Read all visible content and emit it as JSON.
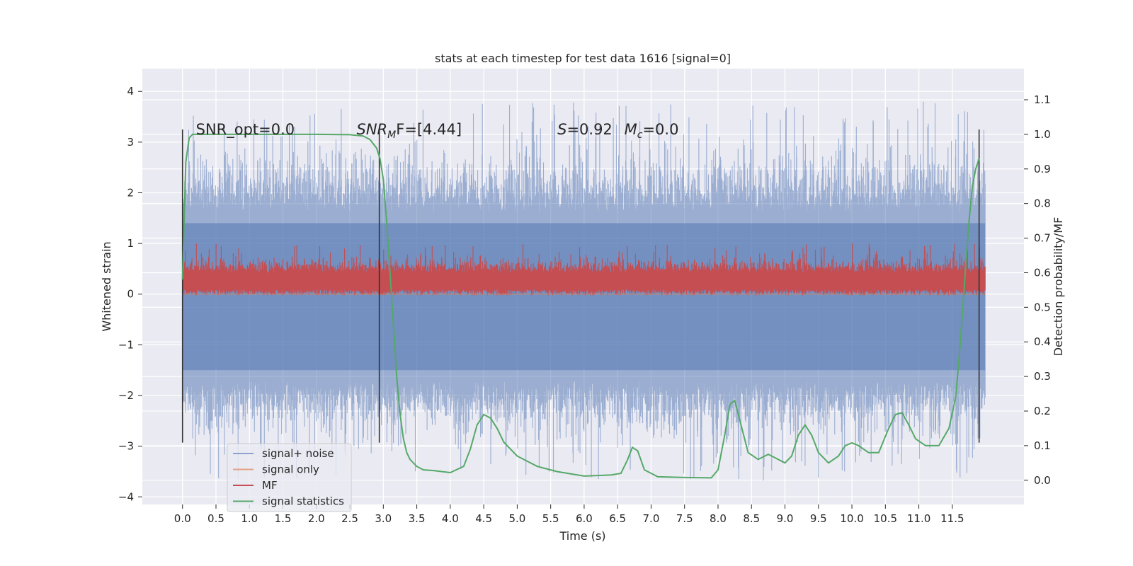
{
  "chart_data": {
    "type": "line",
    "title": "stats at each timestep for test data 1616 [signal=0]",
    "xlabel": "Time (s)",
    "ylabel": "Whitened strain",
    "y2label": "Detection probability/MF",
    "xlim": [
      -0.6,
      12.57
    ],
    "ylim": [
      -4.15,
      4.45
    ],
    "y2lim": [
      -0.07,
      1.19
    ],
    "xticks": [
      0.0,
      0.5,
      1.0,
      1.5,
      2.0,
      2.5,
      3.0,
      3.5,
      4.0,
      4.5,
      5.0,
      5.5,
      6.0,
      6.5,
      7.0,
      7.5,
      8.0,
      8.5,
      9.0,
      9.5,
      10.0,
      10.5,
      11.0,
      11.5
    ],
    "xtick_labels": [
      "0.0",
      "0.5",
      "1.0",
      "1.5",
      "2.0",
      "2.5",
      "3.0",
      "3.5",
      "4.0",
      "4.5",
      "5.0",
      "5.5",
      "6.0",
      "6.5",
      "7.0",
      "7.5",
      "8.0",
      "8.5",
      "9.0",
      "9.5",
      "10.0",
      "10.5",
      "11.0",
      "11.5"
    ],
    "yticks": [
      -4,
      -3,
      -2,
      -1,
      0,
      1,
      2,
      3,
      4
    ],
    "ytick_labels": [
      "−4",
      "−3",
      "−2",
      "−1",
      "0",
      "1",
      "2",
      "3",
      "4"
    ],
    "y2ticks": [
      0.0,
      0.1,
      0.2,
      0.3,
      0.4,
      0.5,
      0.6,
      0.7,
      0.8,
      0.9,
      1.0,
      1.1
    ],
    "y2tick_labels": [
      "0.0",
      "0.1",
      "0.2",
      "0.3",
      "0.4",
      "0.5",
      "0.6",
      "0.7",
      "0.8",
      "0.9",
      "1.0",
      "1.1"
    ],
    "grid": true,
    "legend_position": "lower-left",
    "series": [
      {
        "name": "signal+ noise",
        "axis": "left",
        "color": "#4c72b0",
        "alpha": 0.5,
        "x_range": [
          0.0,
          11.99
        ],
        "envelope": "noise band, mostly within ±2.5, spikes to about ±4"
      },
      {
        "name": "signal only",
        "axis": "left",
        "color": "#dd8452",
        "values": "zero everywhere (signal=0)"
      },
      {
        "name": "MF",
        "axis": "left",
        "color": "#c44e52",
        "x_range": [
          0.0,
          11.99
        ],
        "envelope": "band about 0.0 to 0.7, peaks near 1.0"
      },
      {
        "name": "signal statistics",
        "axis": "right",
        "color": "#55a868",
        "x": [
          0.0,
          0.05,
          0.1,
          0.15,
          0.25,
          0.5,
          1.0,
          1.5,
          2.0,
          2.5,
          2.7,
          2.8,
          2.9,
          2.95,
          3.0,
          3.05,
          3.1,
          3.15,
          3.2,
          3.25,
          3.3,
          3.35,
          3.4,
          3.5,
          3.6,
          3.75,
          4.0,
          4.2,
          4.3,
          4.4,
          4.5,
          4.6,
          4.7,
          4.8,
          5.0,
          5.3,
          5.6,
          6.0,
          6.4,
          6.55,
          6.65,
          6.72,
          6.8,
          6.9,
          7.1,
          7.5,
          7.9,
          8.0,
          8.1,
          8.18,
          8.25,
          8.33,
          8.45,
          8.6,
          8.75,
          8.9,
          9.0,
          9.1,
          9.2,
          9.3,
          9.4,
          9.5,
          9.65,
          9.8,
          9.9,
          10.0,
          10.1,
          10.25,
          10.4,
          10.55,
          10.65,
          10.75,
          10.85,
          10.95,
          11.1,
          11.3,
          11.45,
          11.55,
          11.6,
          11.65,
          11.7,
          11.75,
          11.8,
          11.85,
          11.9
        ],
        "y": [
          0.58,
          0.92,
          0.99,
          1.0,
          1.0,
          1.0,
          1.0,
          1.0,
          1.0,
          0.999,
          0.995,
          0.985,
          0.96,
          0.93,
          0.87,
          0.75,
          0.6,
          0.45,
          0.3,
          0.19,
          0.12,
          0.08,
          0.06,
          0.04,
          0.03,
          0.028,
          0.022,
          0.04,
          0.09,
          0.16,
          0.19,
          0.18,
          0.15,
          0.11,
          0.07,
          0.04,
          0.025,
          0.012,
          0.015,
          0.02,
          0.06,
          0.095,
          0.085,
          0.03,
          0.01,
          0.008,
          0.007,
          0.03,
          0.13,
          0.22,
          0.23,
          0.17,
          0.08,
          0.06,
          0.075,
          0.06,
          0.05,
          0.07,
          0.13,
          0.16,
          0.13,
          0.08,
          0.05,
          0.07,
          0.1,
          0.108,
          0.1,
          0.08,
          0.08,
          0.15,
          0.19,
          0.195,
          0.16,
          0.12,
          0.1,
          0.1,
          0.15,
          0.24,
          0.35,
          0.48,
          0.62,
          0.75,
          0.85,
          0.9,
          0.93
        ]
      }
    ],
    "vlines": {
      "x": [
        0.0,
        2.94,
        11.9
      ],
      "y_range": [
        -2.93,
        3.25
      ],
      "color": "#333333"
    },
    "annotations": [
      {
        "text": "SNR_opt=0.0",
        "x": 0.2,
        "y": 3.15
      },
      {
        "text": "SNR",
        "sub": "M",
        "tail": "F=[4.44]",
        "x": 2.6,
        "y": 3.15,
        "italic": true
      },
      {
        "text": "S=0.92",
        "x": 5.6,
        "y": 3.15,
        "italic_prefix": "S"
      },
      {
        "text": "M",
        "sub": "c",
        "tail": "=0.0",
        "x": 6.6,
        "y": 3.15
      }
    ],
    "colors": {
      "axes_bg": "#eaeaf2",
      "grid": "#ffffff",
      "text": "#262626"
    }
  }
}
